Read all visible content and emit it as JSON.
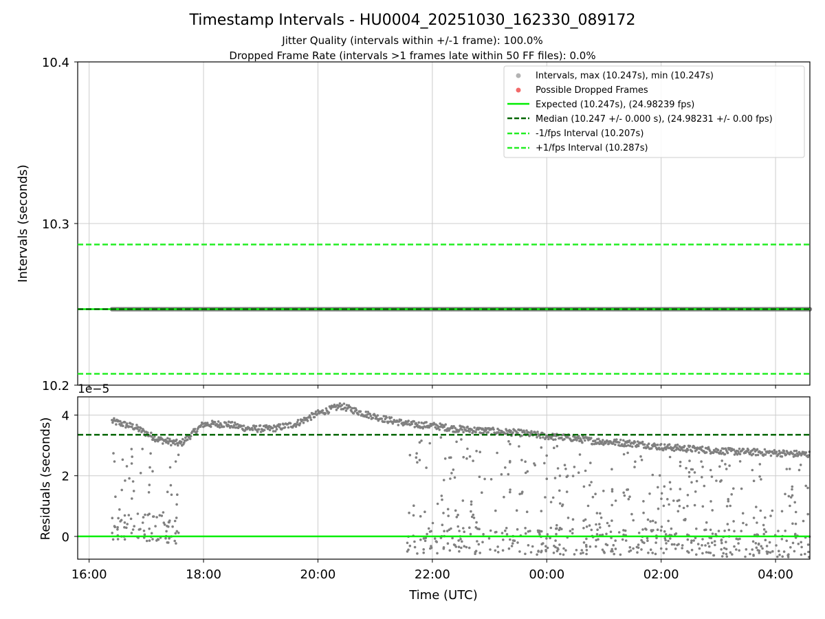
{
  "figure": {
    "title": "Timestamp Intervals - HU0004_20251030_162330_089172",
    "subtitle_jitter": "Jitter Quality (intervals within +/-1 frame): 100.0%",
    "subtitle_dropped": "Dropped Frame Rate (intervals >1 frames late within 50 FF files): 0.0%"
  },
  "colors": {
    "points": "#808080",
    "dropped": "#f05050",
    "expected": "#00ee00",
    "median": "#006400",
    "interval_bounds": "#22ee22",
    "grid": "#cccccc"
  },
  "chart_data": [
    {
      "type": "scatter",
      "panel": "intervals",
      "xlabel": "",
      "ylabel": "Intervals (seconds)",
      "ylim": [
        10.2,
        10.4
      ],
      "xlim": [
        15.8,
        28.6
      ],
      "yticks": [
        10.2,
        10.3,
        10.4
      ],
      "ytick_labels": [
        "10.2",
        "10.3",
        "10.4"
      ],
      "grid": true,
      "legend_position": "top-right",
      "legend": [
        {
          "key": "intervals",
          "label": "Intervals, max (10.247s), min (10.247s)"
        },
        {
          "key": "dropped",
          "label": "Possible Dropped Frames"
        },
        {
          "key": "expected",
          "label": "Expected (10.247s), (24.98239 fps)"
        },
        {
          "key": "median",
          "label": "Median (10.247 +/- 0.000 s), (24.98231 +/- 0.00 fps)"
        },
        {
          "key": "minus",
          "label": "-1/fps Interval (10.207s)"
        },
        {
          "key": "plus",
          "label": "+1/fps Interval (10.287s)"
        }
      ],
      "series": [
        {
          "name": "Intervals",
          "x_start": 16.4,
          "x_end": 28.6,
          "value": 10.247
        },
        {
          "name": "Expected",
          "value": 10.247
        },
        {
          "name": "Median",
          "value": 10.247
        },
        {
          "name": "-1/fps Interval",
          "value": 10.207
        },
        {
          "name": "+1/fps Interval",
          "value": 10.287
        }
      ]
    },
    {
      "type": "scatter",
      "panel": "residuals",
      "xlabel": "Time (UTC)",
      "ylabel": "Residuals (seconds)",
      "scale_label": "1e−5",
      "ylim": [
        -0.75,
        4.6
      ],
      "xlim": [
        15.8,
        28.6
      ],
      "yticks": [
        0,
        2,
        4
      ],
      "ytick_labels": [
        "0",
        "2",
        "4"
      ],
      "xticks": [
        16,
        18,
        20,
        22,
        24,
        26,
        28
      ],
      "xtick_labels": [
        "16:00",
        "18:00",
        "20:00",
        "22:00",
        "00:00",
        "02:00",
        "04:00"
      ],
      "grid": true,
      "expected": 0,
      "median": 3.35,
      "trend": [
        [
          16.4,
          3.8
        ],
        [
          16.8,
          3.6
        ],
        [
          17.2,
          3.2
        ],
        [
          17.6,
          3.05
        ],
        [
          18.0,
          3.7
        ],
        [
          18.4,
          3.7
        ],
        [
          18.8,
          3.55
        ],
        [
          19.2,
          3.55
        ],
        [
          19.6,
          3.7
        ],
        [
          20.0,
          4.05
        ],
        [
          20.4,
          4.3
        ],
        [
          20.8,
          4.05
        ],
        [
          21.2,
          3.85
        ],
        [
          21.6,
          3.7
        ],
        [
          22.0,
          3.65
        ],
        [
          22.4,
          3.55
        ],
        [
          22.8,
          3.5
        ],
        [
          23.2,
          3.45
        ],
        [
          23.6,
          3.4
        ],
        [
          24.0,
          3.3
        ],
        [
          24.4,
          3.25
        ],
        [
          24.8,
          3.15
        ],
        [
          25.2,
          3.1
        ],
        [
          25.6,
          3.05
        ],
        [
          26.0,
          2.95
        ],
        [
          26.4,
          2.9
        ],
        [
          26.8,
          2.85
        ],
        [
          27.2,
          2.8
        ],
        [
          27.6,
          2.78
        ],
        [
          28.0,
          2.75
        ],
        [
          28.6,
          2.7
        ]
      ],
      "scatter_segments": [
        {
          "x_start": 16.4,
          "x_end": 17.6,
          "low": -0.15,
          "high": 3.0
        },
        {
          "x_start": 21.55,
          "x_end": 28.6,
          "low": -0.6,
          "high": 3.3
        }
      ]
    }
  ]
}
